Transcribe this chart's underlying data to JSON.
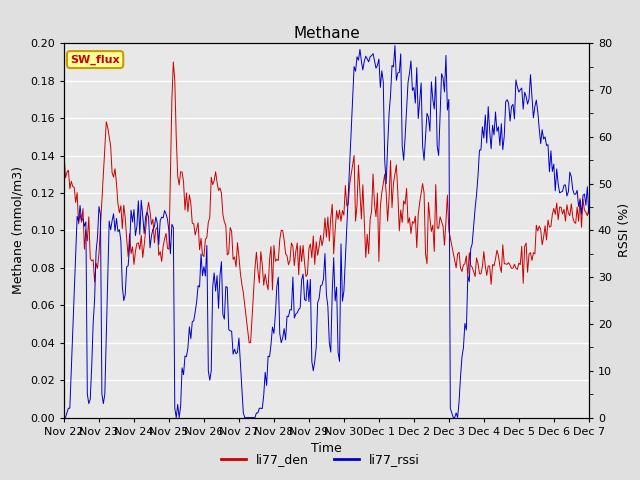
{
  "title": "Methane",
  "ylabel_left": "Methane (mmol/m3)",
  "ylabel_right": "RSSI (%)",
  "xlabel": "Time",
  "ylim_left": [
    0.0,
    0.2
  ],
  "ylim_right": [
    0,
    80
  ],
  "yticks_left": [
    0.0,
    0.02,
    0.04,
    0.06,
    0.08,
    0.1,
    0.12,
    0.14,
    0.16,
    0.18,
    0.2
  ],
  "yticks_right": [
    0,
    10,
    20,
    30,
    40,
    50,
    60,
    70,
    80
  ],
  "yticks_right_minor": [
    5,
    15,
    25,
    35,
    45,
    55,
    65,
    75
  ],
  "color_den": "#cc0000",
  "color_rssi": "#0000cc",
  "legend_den": "li77_den",
  "legend_rssi": "li77_rssi",
  "sw_flux_label": "SW_flux",
  "sw_flux_bg": "#ffff99",
  "sw_flux_border": "#cc9900",
  "sw_flux_color": "#cc0000",
  "bg_color": "#e0e0e0",
  "plot_bg": "#e8e8e8",
  "grid_color": "#ffffff",
  "title_fontsize": 11,
  "axis_fontsize": 9,
  "tick_fontsize": 8,
  "legend_fontsize": 9
}
